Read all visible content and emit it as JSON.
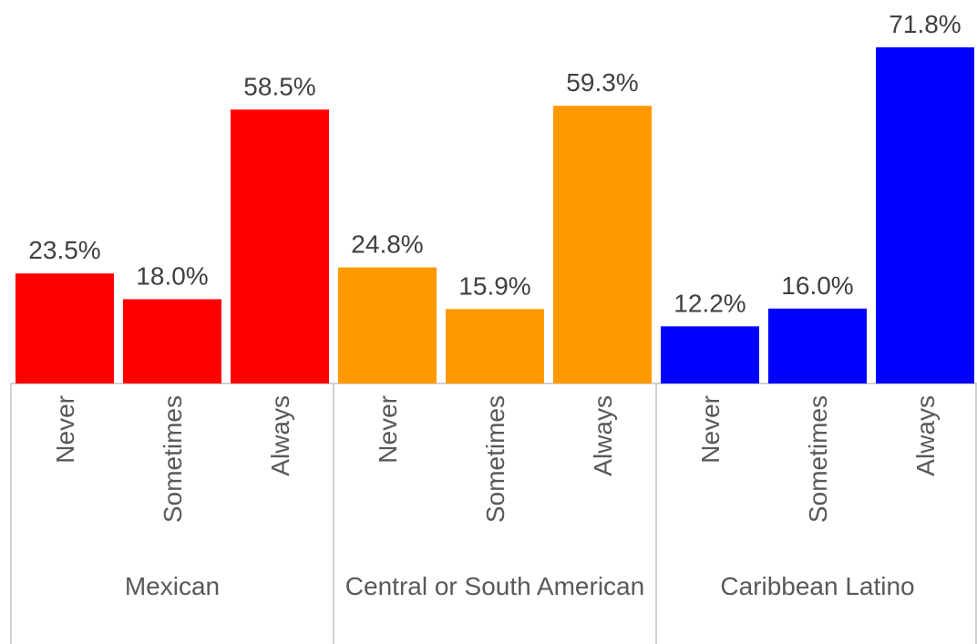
{
  "chart_data": {
    "type": "bar",
    "groups": [
      {
        "name": "Mexican",
        "color": "#ff0000",
        "categories": [
          "Never",
          "Sometimes",
          "Always"
        ],
        "values": [
          23.5,
          18.0,
          58.5
        ],
        "value_labels": [
          "23.5%",
          "18.0%",
          "58.5%"
        ]
      },
      {
        "name": "Central or South American",
        "color": "#ff9900",
        "categories": [
          "Never",
          "Sometimes",
          "Always"
        ],
        "values": [
          24.8,
          15.9,
          59.3
        ],
        "value_labels": [
          "24.8%",
          "15.9%",
          "59.3%"
        ]
      },
      {
        "name": "Caribbean Latino",
        "color": "#0000ff",
        "categories": [
          "Never",
          "Sometimes",
          "Always"
        ],
        "values": [
          12.2,
          16.0,
          71.8
        ],
        "value_labels": [
          "12.2%",
          "16.0%",
          "71.8%"
        ]
      }
    ]
  }
}
